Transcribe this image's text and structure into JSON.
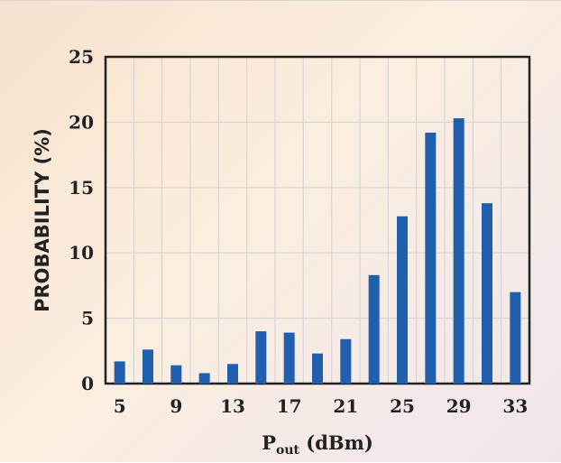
{
  "chart_data": {
    "type": "bar",
    "title": "",
    "xlabel_main": "P",
    "xlabel_sub": "out",
    "xlabel_unit": " (dBm)",
    "ylabel": "PROBABILITY (%)",
    "ylim": [
      0,
      25
    ],
    "yticks": [
      0,
      5,
      10,
      15,
      20,
      25
    ],
    "xticks": [
      5,
      9,
      13,
      17,
      21,
      25,
      29,
      33
    ],
    "x": [
      5,
      7,
      9,
      11,
      13,
      15,
      17,
      19,
      21,
      23,
      25,
      27,
      29,
      31,
      33
    ],
    "values": [
      1.7,
      2.6,
      1.4,
      0.8,
      1.5,
      4.0,
      3.9,
      2.3,
      3.4,
      8.3,
      12.8,
      19.2,
      20.3,
      13.8,
      7.0
    ],
    "grid": true,
    "colors": {
      "bar": "#1f5fae",
      "grid": "#d6d6d6",
      "axis": "#222222"
    }
  }
}
